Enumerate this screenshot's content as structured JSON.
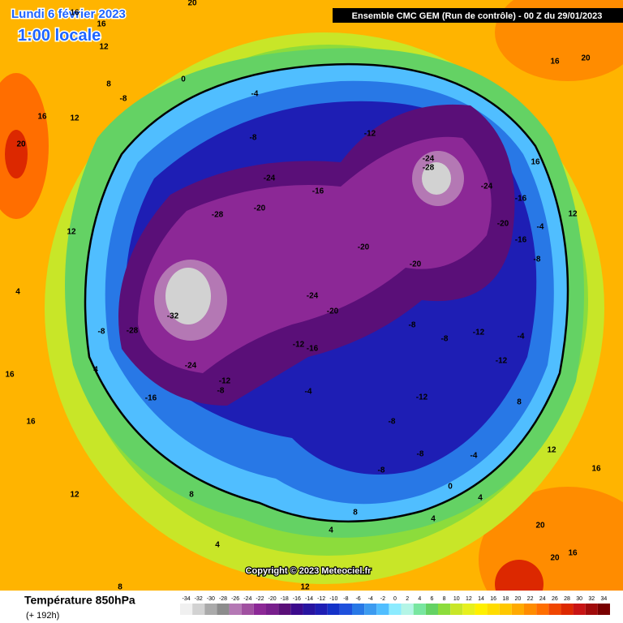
{
  "header": {
    "date": "Lundi 6 février 2023",
    "time": "1:00 locale",
    "run": "Ensemble CMC GEM  (Run de contrôle)  -  00 Z du 29/01/2023"
  },
  "map": {
    "copyright": "Copyright © 2023 Meteociel.fr",
    "contour_labels": [
      16,
      20,
      16,
      12,
      16,
      20,
      12,
      8,
      -8,
      0,
      -4,
      -8,
      -12,
      -16,
      -20,
      -24,
      -28,
      -24,
      -28,
      -24,
      -16,
      -20,
      -16,
      -4,
      -8,
      -20,
      -20,
      -24,
      -20,
      -16,
      -12,
      -32,
      -28,
      -24,
      -16,
      -12,
      -8,
      -8,
      4,
      -4,
      -8,
      -8,
      -12,
      -12,
      -8,
      -8,
      -8,
      -4,
      -12,
      -4,
      8,
      4,
      4,
      0,
      8,
      4,
      8,
      4,
      12,
      16,
      12,
      16,
      20,
      20,
      16,
      12,
      8,
      16,
      4,
      12,
      16,
      20,
      16,
      12
    ]
  },
  "legend": {
    "title": "Température 850hPa",
    "lead": "(+ 192h)",
    "ticks": [
      -34,
      -32,
      -30,
      -28,
      -26,
      -24,
      -22,
      -20,
      -18,
      -16,
      -14,
      -12,
      -10,
      -8,
      -6,
      -4,
      -2,
      0,
      2,
      4,
      6,
      8,
      10,
      12,
      14,
      16,
      18,
      20,
      22,
      24,
      26,
      28,
      30,
      32,
      34
    ],
    "colors": [
      "#f0f0f0",
      "#d2d2d2",
      "#aaaaaa",
      "#8c8c8c",
      "#b478b4",
      "#a050a0",
      "#8c2896",
      "#781e8c",
      "#5a0f78",
      "#3c0a8c",
      "#2814a0",
      "#1e1eb4",
      "#1432c8",
      "#1e50dc",
      "#2878e6",
      "#3c9bf0",
      "#50beff",
      "#8cebff",
      "#b4f5e6",
      "#78e6a0",
      "#64d264",
      "#8cdc3c",
      "#c8e628",
      "#e6f01e",
      "#fff000",
      "#ffdc00",
      "#ffc800",
      "#ffaa00",
      "#ff8c00",
      "#ff6e00",
      "#f04600",
      "#dc2800",
      "#c81414",
      "#a00a0a",
      "#780000"
    ]
  }
}
